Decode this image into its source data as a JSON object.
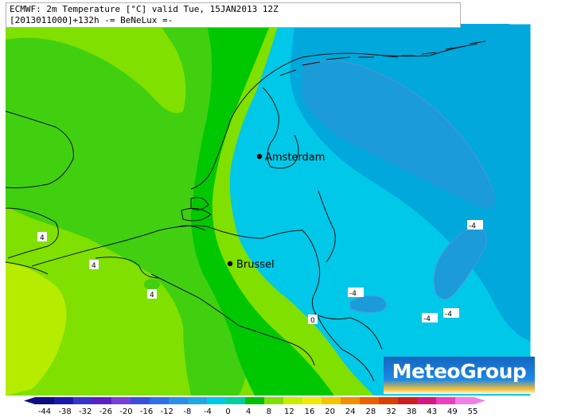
{
  "header": {
    "line1": "ECMWF: 2m Temperature [°C] valid Tue, 15JAN2013 12Z",
    "line2": "[2013011000]+132h  -= BeNeLux =-"
  },
  "cities": [
    {
      "name": "Amsterdam"
    },
    {
      "name": "Brussel"
    }
  ],
  "contour_labels": [
    "4",
    "4",
    "4",
    "-4",
    "-4",
    "-4",
    "-4",
    "0"
  ],
  "logo": "MeteoGroup",
  "scale": {
    "ticks": [
      "-44",
      "-38",
      "-32",
      "-26",
      "-20",
      "-16",
      "-12",
      "-8",
      "-4",
      "0",
      "4",
      "8",
      "12",
      "16",
      "20",
      "24",
      "28",
      "32",
      "38",
      "43",
      "49",
      "55"
    ],
    "colors": [
      "#0d0d80",
      "#1a1aa8",
      "#3535cc",
      "#5c1fbf",
      "#7a3fd6",
      "#3a4fe0",
      "#2f6fe8",
      "#2b8fe6",
      "#20a8e0",
      "#00c9e8",
      "#00d0a0",
      "#00c000",
      "#7ee000",
      "#c8ec00",
      "#f2ea00",
      "#f5c400",
      "#f09000",
      "#e86000",
      "#d84000",
      "#c82020",
      "#d01880",
      "#e840c0",
      "#f080e8"
    ]
  },
  "colors": {
    "yellowgreen": "#b6ec00",
    "lightgreen": "#80e000",
    "green": "#40d010",
    "brightgreen": "#00c800",
    "cyan": "#00c8e8",
    "blue": "#00a8dc"
  }
}
